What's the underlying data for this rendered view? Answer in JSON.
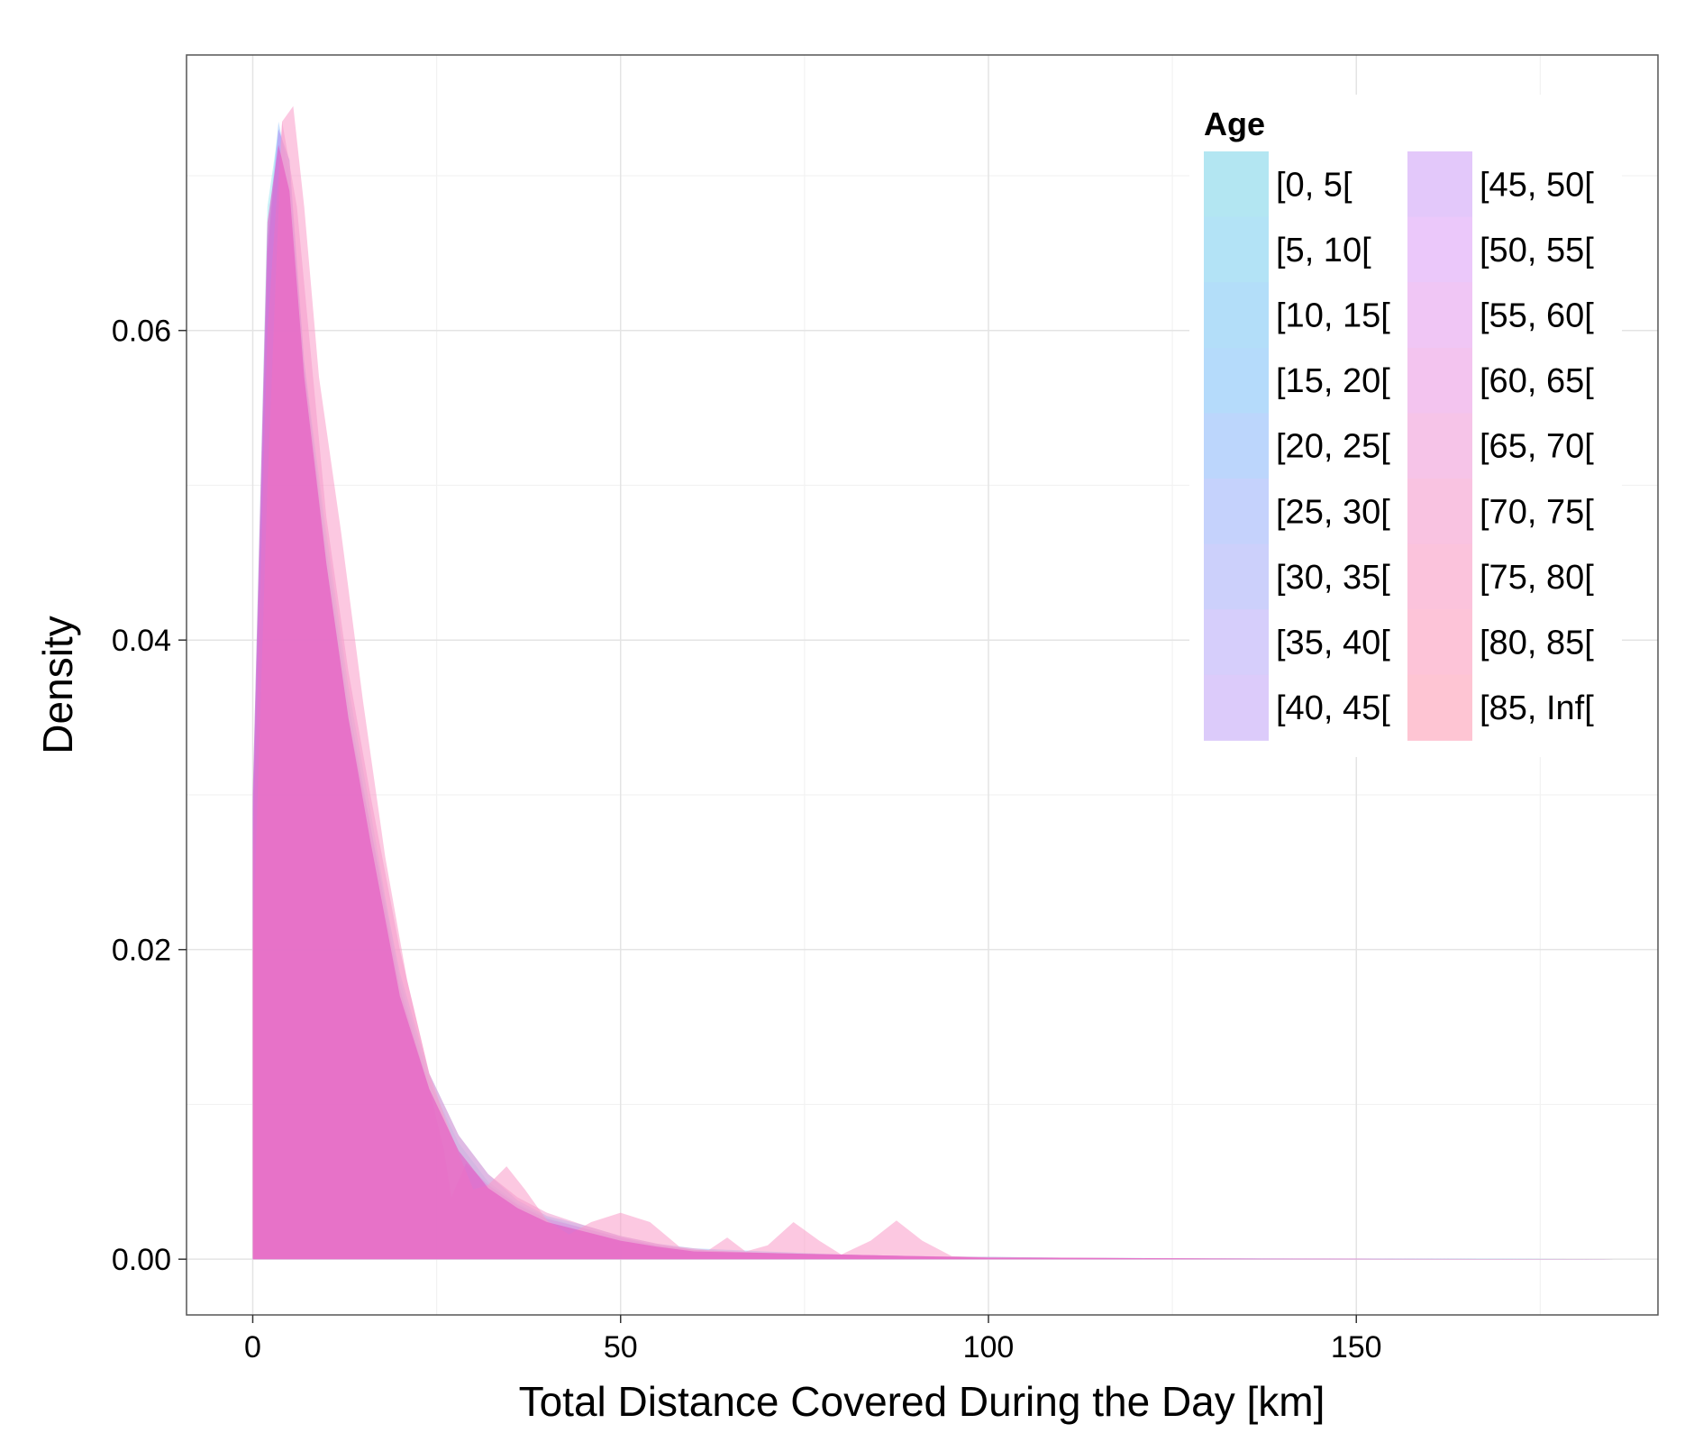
{
  "chart_data": {
    "type": "area",
    "subtype": "density",
    "title": "",
    "xlabel": "Total Distance Covered During the Day [km]",
    "ylabel": "Density",
    "xlim": [
      -9,
      191
    ],
    "ylim": [
      -0.0036,
      0.0778
    ],
    "x_ticks": [
      0,
      50,
      100,
      150
    ],
    "x_tick_labels": [
      "0",
      "50",
      "100",
      "150"
    ],
    "y_ticks": [
      0.0,
      0.02,
      0.04,
      0.06
    ],
    "y_tick_labels": [
      "0.00",
      "0.02",
      "0.04",
      "0.06"
    ],
    "grid": true,
    "legend": {
      "title": "Age",
      "placement": "top-right",
      "columns": 2,
      "entries": [
        {
          "label": "[0, 5[",
          "color": "#b3e6f2"
        },
        {
          "label": "[5, 10[",
          "color": "#b3e3f6"
        },
        {
          "label": "[10, 15[",
          "color": "#b3def9"
        },
        {
          "label": "[15, 20[",
          "color": "#b5dbfb"
        },
        {
          "label": "[20, 25[",
          "color": "#bcd6fc"
        },
        {
          "label": "[25, 30[",
          "color": "#c5d2fc"
        },
        {
          "label": "[30, 35[",
          "color": "#ccd0fb"
        },
        {
          "label": "[35, 40[",
          "color": "#d6cefb"
        },
        {
          "label": "[40, 45[",
          "color": "#dccbfa"
        },
        {
          "label": "[45, 50[",
          "color": "#e3c8fa"
        },
        {
          "label": "[50, 55[",
          "color": "#ebc8fa"
        },
        {
          "label": "[55, 60[",
          "color": "#f0c6f5"
        },
        {
          "label": "[60, 65[",
          "color": "#f3c4ef"
        },
        {
          "label": "[65, 70[",
          "color": "#f6c4e8"
        },
        {
          "label": "[70, 75[",
          "color": "#f9c3e1"
        },
        {
          "label": "[75, 80[",
          "color": "#fbc3dc"
        },
        {
          "label": "[80, 85[",
          "color": "#fdc4d8"
        },
        {
          "label": "[85, Inf[",
          "color": "#fec5d3"
        }
      ]
    },
    "series": [
      {
        "name": "[0, 5[",
        "color": "#9ee3f0",
        "x": [
          0,
          2,
          3.5,
          5,
          7,
          10,
          13,
          16,
          20,
          24,
          28,
          32,
          36,
          40,
          45,
          50,
          55,
          60,
          70,
          80,
          90,
          100,
          110,
          130,
          150,
          170,
          185
        ],
        "y": [
          0.03,
          0.068,
          0.073,
          0.071,
          0.058,
          0.047,
          0.037,
          0.029,
          0.018,
          0.0115,
          0.0075,
          0.005,
          0.0036,
          0.0027,
          0.002,
          0.0013,
          0.0009,
          0.0006,
          0.0004,
          0.0003,
          0.0002,
          0.00015,
          0.0001,
          5e-05,
          3e-05,
          2e-05,
          0.0
        ]
      },
      {
        "name": "[20, 25[",
        "color": "#9cc6fa",
        "x": [
          0,
          2,
          3.5,
          5,
          7,
          10,
          13,
          16,
          20,
          24,
          28,
          32,
          36,
          40,
          45,
          50,
          55,
          60,
          70,
          80,
          90,
          100,
          110,
          130,
          150,
          170,
          185
        ],
        "y": [
          0.028,
          0.066,
          0.0735,
          0.07,
          0.058,
          0.046,
          0.036,
          0.028,
          0.0185,
          0.012,
          0.008,
          0.0055,
          0.0038,
          0.0028,
          0.0022,
          0.0015,
          0.001,
          0.0007,
          0.0005,
          0.0003,
          0.0002,
          0.00015,
          0.0001,
          6e-05,
          4e-05,
          2e-05,
          0.0
        ]
      },
      {
        "name": "[40, 45[",
        "color": "#c08af5",
        "x": [
          0,
          2,
          3.5,
          5,
          7,
          10,
          13,
          16,
          20,
          24,
          26,
          27,
          29,
          32,
          36,
          40,
          45,
          50,
          55,
          60,
          70,
          80,
          90,
          100,
          110,
          130,
          150,
          185
        ],
        "y": [
          0.029,
          0.065,
          0.073,
          0.071,
          0.058,
          0.045,
          0.035,
          0.028,
          0.0175,
          0.011,
          0.007,
          0.004,
          0.0062,
          0.0048,
          0.0035,
          0.0026,
          0.002,
          0.0014,
          0.0009,
          0.0006,
          0.0004,
          0.0003,
          0.0002,
          0.0001,
          8e-05,
          4e-05,
          2e-05,
          0.0
        ]
      },
      {
        "name": "[65, 70[",
        "color": "#f09ad0",
        "x": [
          0,
          2,
          4,
          6,
          8,
          10,
          13,
          16,
          20,
          24,
          28,
          32,
          36,
          40,
          45,
          50,
          55,
          60,
          70,
          80,
          90,
          100,
          110,
          130,
          150,
          185
        ],
        "y": [
          0.026,
          0.06,
          0.0735,
          0.068,
          0.058,
          0.048,
          0.038,
          0.03,
          0.02,
          0.012,
          0.008,
          0.0055,
          0.004,
          0.003,
          0.0022,
          0.0015,
          0.001,
          0.0006,
          0.0004,
          0.0003,
          0.0002,
          0.00015,
          0.0001,
          5e-05,
          2e-05,
          0.0
        ]
      },
      {
        "name": "[85, Inf[",
        "color": "#fa9ac8",
        "x": [
          0,
          2,
          4,
          5.5,
          7,
          9,
          12,
          15,
          18,
          21,
          24,
          27,
          30,
          32,
          34.5,
          37,
          40,
          43,
          46,
          50,
          54,
          58,
          62,
          64.5,
          67,
          70,
          73.5,
          77,
          80,
          84,
          87.5,
          91,
          95,
          100,
          110,
          130,
          150,
          185
        ],
        "y": [
          0.02,
          0.05,
          0.0735,
          0.0745,
          0.068,
          0.057,
          0.047,
          0.036,
          0.026,
          0.018,
          0.012,
          0.008,
          0.0045,
          0.0048,
          0.006,
          0.0045,
          0.0025,
          0.0016,
          0.0024,
          0.003,
          0.0024,
          0.0008,
          0.0006,
          0.0014,
          0.0005,
          0.0009,
          0.0024,
          0.0012,
          0.0003,
          0.0012,
          0.0025,
          0.0012,
          0.0002,
          0.0001,
          0.0001,
          5e-05,
          2e-05,
          0.0
        ]
      },
      {
        "name": "[45, 50[",
        "color": "#e44fc0",
        "x": [
          0,
          2,
          3.5,
          5,
          7,
          10,
          13,
          16,
          20,
          24,
          28,
          32,
          36,
          40,
          45,
          50,
          55,
          60,
          70,
          80,
          90,
          100,
          110,
          130,
          150,
          185
        ],
        "y": [
          0.03,
          0.067,
          0.072,
          0.069,
          0.057,
          0.045,
          0.035,
          0.027,
          0.017,
          0.011,
          0.007,
          0.0046,
          0.0033,
          0.0024,
          0.0018,
          0.0012,
          0.0008,
          0.0005,
          0.0004,
          0.0003,
          0.0002,
          0.0001,
          0.0001,
          4e-05,
          2e-05,
          0.0
        ]
      }
    ]
  }
}
